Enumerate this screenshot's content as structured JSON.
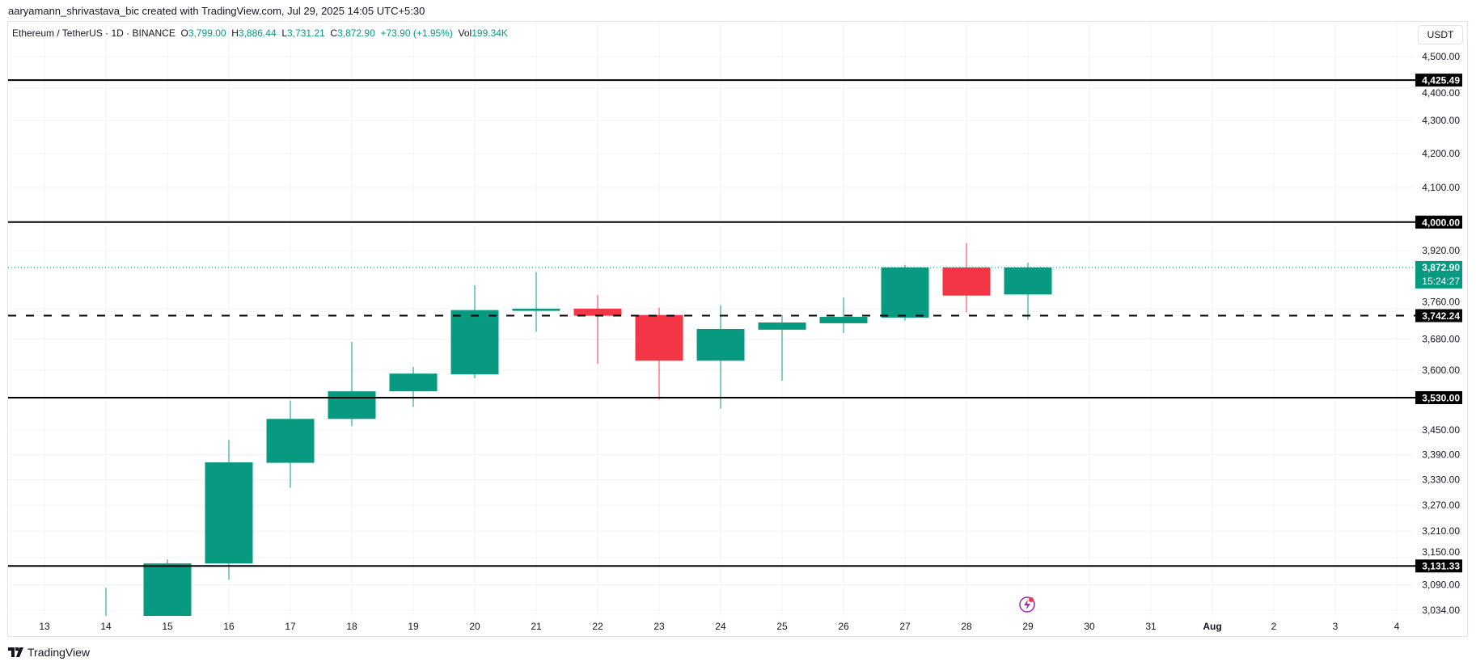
{
  "attribution": "aaryamann_shrivastava_bic created with TradingView.com, Jul 29, 2025 14:05 UTC+5:30",
  "legend": {
    "symbol": "Ethereum / TetherUS · 1D · BINANCE",
    "o_label": "O",
    "o_value": "3,799.00",
    "h_label": "H",
    "h_value": "3,886.44",
    "l_label": "L",
    "l_value": "3,731.21",
    "c_label": "C",
    "c_value": "3,872.90",
    "change": "+73.90 (+1.95%)",
    "vol_label": "Vol",
    "vol_value": "199.34K"
  },
  "currency_button": "USDT",
  "logo_text": "TradingView",
  "colors": {
    "up": "#089981",
    "down": "#F23645",
    "line": "#000000",
    "grid": "#f0f3fa",
    "alert": "#9c27b0"
  },
  "chart_data": {
    "type": "candlestick",
    "scale": "log",
    "ylim": [
      3022,
      4613
    ],
    "grid": true,
    "candles": [
      {
        "date": "14",
        "o": 2972,
        "h": 3083,
        "l": 2945,
        "c": 3013
      },
      {
        "date": "15",
        "o": 3013,
        "h": 3146,
        "l": 2950,
        "c": 3137
      },
      {
        "date": "16",
        "o": 3137,
        "h": 3425,
        "l": 3101,
        "c": 3371
      },
      {
        "date": "17",
        "o": 3370,
        "h": 3523,
        "l": 3311,
        "c": 3477
      },
      {
        "date": "18",
        "o": 3477,
        "h": 3673,
        "l": 3459,
        "c": 3546
      },
      {
        "date": "19",
        "o": 3546,
        "h": 3608,
        "l": 3507,
        "c": 3591
      },
      {
        "date": "20",
        "o": 3589,
        "h": 3824,
        "l": 3579,
        "c": 3757
      },
      {
        "date": "21",
        "o": 3755,
        "h": 3860,
        "l": 3700,
        "c": 3761
      },
      {
        "date": "22",
        "o": 3761,
        "h": 3798,
        "l": 3616,
        "c": 3742
      },
      {
        "date": "23",
        "o": 3744,
        "h": 3763,
        "l": 3525,
        "c": 3624
      },
      {
        "date": "24",
        "o": 3624,
        "h": 3770,
        "l": 3503,
        "c": 3707
      },
      {
        "date": "25",
        "o": 3705,
        "h": 3744,
        "l": 3573,
        "c": 3724
      },
      {
        "date": "26",
        "o": 3722,
        "h": 3791,
        "l": 3696,
        "c": 3739
      },
      {
        "date": "27",
        "o": 3737,
        "h": 3880,
        "l": 3729,
        "c": 3873
      },
      {
        "date": "28",
        "o": 3873,
        "h": 3941,
        "l": 3751,
        "c": 3796
      },
      {
        "date": "29",
        "o": 3799.0,
        "h": 3886.44,
        "l": 3731.21,
        "c": 3872.9
      }
    ],
    "x_ticks": [
      "13",
      "14",
      "15",
      "16",
      "17",
      "18",
      "19",
      "20",
      "21",
      "22",
      "23",
      "24",
      "25",
      "26",
      "27",
      "28",
      "29",
      "30",
      "31",
      "Aug",
      "2",
      "3",
      "4"
    ],
    "y_ticks": [
      {
        "value": 4500,
        "label": "4,500.00"
      },
      {
        "value": 4400,
        "label": "4,400.00"
      },
      {
        "value": 4300,
        "label": "4,300.00"
      },
      {
        "value": 4200,
        "label": "4,200.00"
      },
      {
        "value": 4100,
        "label": "4,100.00"
      },
      {
        "value": 3920,
        "label": "3,920.00"
      },
      {
        "value": 3760,
        "label": "3,760.00"
      },
      {
        "value": 3680,
        "label": "3,680.00"
      },
      {
        "value": 3600,
        "label": "3,600.00"
      },
      {
        "value": 3450,
        "label": "3,450.00"
      },
      {
        "value": 3390,
        "label": "3,390.00"
      },
      {
        "value": 3330,
        "label": "3,330.00"
      },
      {
        "value": 3270,
        "label": "3,270.00"
      },
      {
        "value": 3210,
        "label": "3,210.00"
      },
      {
        "value": 3150,
        "label": "3,150.00"
      },
      {
        "value": 3090,
        "label": "3,090.00"
      },
      {
        "value": 3034,
        "label": "3,034.00"
      }
    ],
    "horizontal_lines": [
      {
        "value": 4425.49,
        "label": "4,425.49",
        "style": "solid"
      },
      {
        "value": 4000.0,
        "label": "4,000.00",
        "style": "solid"
      },
      {
        "value": 3742.24,
        "label": "3,742.24",
        "style": "dashed"
      },
      {
        "value": 3530.0,
        "label": "3,530.00",
        "style": "solid"
      },
      {
        "value": 3131.33,
        "label": "3,131.33",
        "style": "solid"
      }
    ],
    "last_price": {
      "value": 3872.9,
      "label": "3,872.90",
      "countdown": "15:24:27"
    }
  }
}
